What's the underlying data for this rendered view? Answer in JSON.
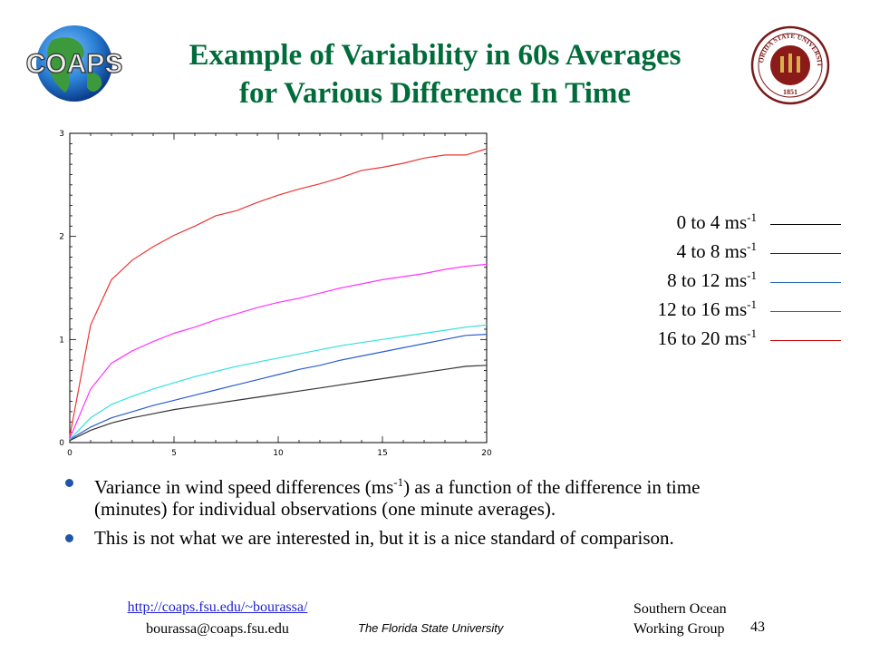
{
  "header": {
    "logo_text": "COAPS",
    "title_line1": "Example of Variability in 60s Averages",
    "title_line2": "for Various Difference In Time",
    "seal_text_top": "FLORIDA STATE UNIVERSITY",
    "seal_year": "1851"
  },
  "colors": {
    "title": "#006c3a",
    "bullet": "#1f56a8",
    "link": "#1f1fd6"
  },
  "legend": [
    {
      "label": "0 to 4 ms",
      "sup": "-1",
      "color": "#000000"
    },
    {
      "label": "4 to 8 ms",
      "sup": "-1",
      "color": "#1a1aa8"
    },
    {
      "label": "8 to 12 ms",
      "sup": "-1",
      "color": "#2a6fb8"
    },
    {
      "label": "12 to 16 ms",
      "sup": "-1",
      "color": "#e000e0"
    },
    {
      "label": "16 to 20 ms",
      "sup": "-1",
      "color": "#cc0000"
    }
  ],
  "chart_data": {
    "type": "line",
    "xlim": [
      0,
      20
    ],
    "ylim": [
      0,
      3
    ],
    "x_ticks": [
      "0",
      "5",
      "10",
      "15",
      "20"
    ],
    "y_ticks": [
      "0",
      "1",
      "2",
      "3"
    ],
    "grid": false,
    "series": [
      {
        "color": "#333333",
        "x": [
          0,
          1,
          2,
          3,
          4,
          5,
          6,
          7,
          8,
          9,
          10,
          11,
          12,
          13,
          14,
          15,
          16,
          17,
          18,
          19,
          20
        ],
        "y": [
          0.02,
          0.12,
          0.19,
          0.24,
          0.28,
          0.32,
          0.35,
          0.38,
          0.41,
          0.44,
          0.47,
          0.5,
          0.53,
          0.56,
          0.59,
          0.62,
          0.65,
          0.68,
          0.71,
          0.74,
          0.75
        ]
      },
      {
        "color": "#2c5cd0",
        "x": [
          0,
          1,
          2,
          3,
          4,
          5,
          6,
          7,
          8,
          9,
          10,
          11,
          12,
          13,
          14,
          15,
          16,
          17,
          18,
          19,
          20
        ],
        "y": [
          0.03,
          0.15,
          0.24,
          0.3,
          0.36,
          0.41,
          0.46,
          0.51,
          0.56,
          0.61,
          0.66,
          0.71,
          0.75,
          0.8,
          0.84,
          0.88,
          0.92,
          0.96,
          1.0,
          1.04,
          1.05
        ]
      },
      {
        "color": "#33e0e0",
        "x": [
          0,
          1,
          2,
          3,
          4,
          5,
          6,
          7,
          8,
          9,
          10,
          11,
          12,
          13,
          14,
          15,
          16,
          17,
          18,
          19,
          20
        ],
        "y": [
          0.03,
          0.24,
          0.37,
          0.45,
          0.52,
          0.58,
          0.64,
          0.69,
          0.74,
          0.78,
          0.82,
          0.86,
          0.9,
          0.94,
          0.97,
          1.0,
          1.03,
          1.06,
          1.09,
          1.12,
          1.14
        ]
      },
      {
        "color": "#ff33ff",
        "x": [
          0,
          1,
          2,
          3,
          4,
          5,
          6,
          7,
          8,
          9,
          10,
          11,
          12,
          13,
          14,
          15,
          16,
          17,
          18,
          19,
          20
        ],
        "y": [
          0.04,
          0.52,
          0.77,
          0.89,
          0.98,
          1.06,
          1.12,
          1.19,
          1.25,
          1.31,
          1.36,
          1.4,
          1.45,
          1.5,
          1.54,
          1.58,
          1.61,
          1.64,
          1.68,
          1.71,
          1.73
        ]
      },
      {
        "color": "#ee3333",
        "x": [
          0,
          1,
          2,
          3,
          4,
          5,
          6,
          7,
          8,
          9,
          10,
          11,
          12,
          13,
          14,
          15,
          16,
          17,
          18,
          19,
          20
        ],
        "y": [
          0.06,
          1.14,
          1.58,
          1.77,
          1.9,
          2.01,
          2.1,
          2.2,
          2.25,
          2.33,
          2.4,
          2.46,
          2.51,
          2.57,
          2.64,
          2.67,
          2.71,
          2.76,
          2.79,
          2.79,
          2.85
        ]
      }
    ]
  },
  "bullets": [
    {
      "before": "Variance in wind speed differences (ms",
      "sup": "-1",
      "after": ") as a function of the difference in time (minutes) for individual observations (one minute averages)."
    },
    {
      "before": "This is not what we are interested in, but it is a nice standard of comparison.",
      "sup": "",
      "after": ""
    }
  ],
  "footer": {
    "link": "http://coaps.fsu.edu/~bourassa/",
    "email": "bourassa@coaps.fsu.edu",
    "university": "The Florida State University",
    "group_line1": "Southern Ocean",
    "group_line2": "Working Group",
    "page": "43"
  }
}
